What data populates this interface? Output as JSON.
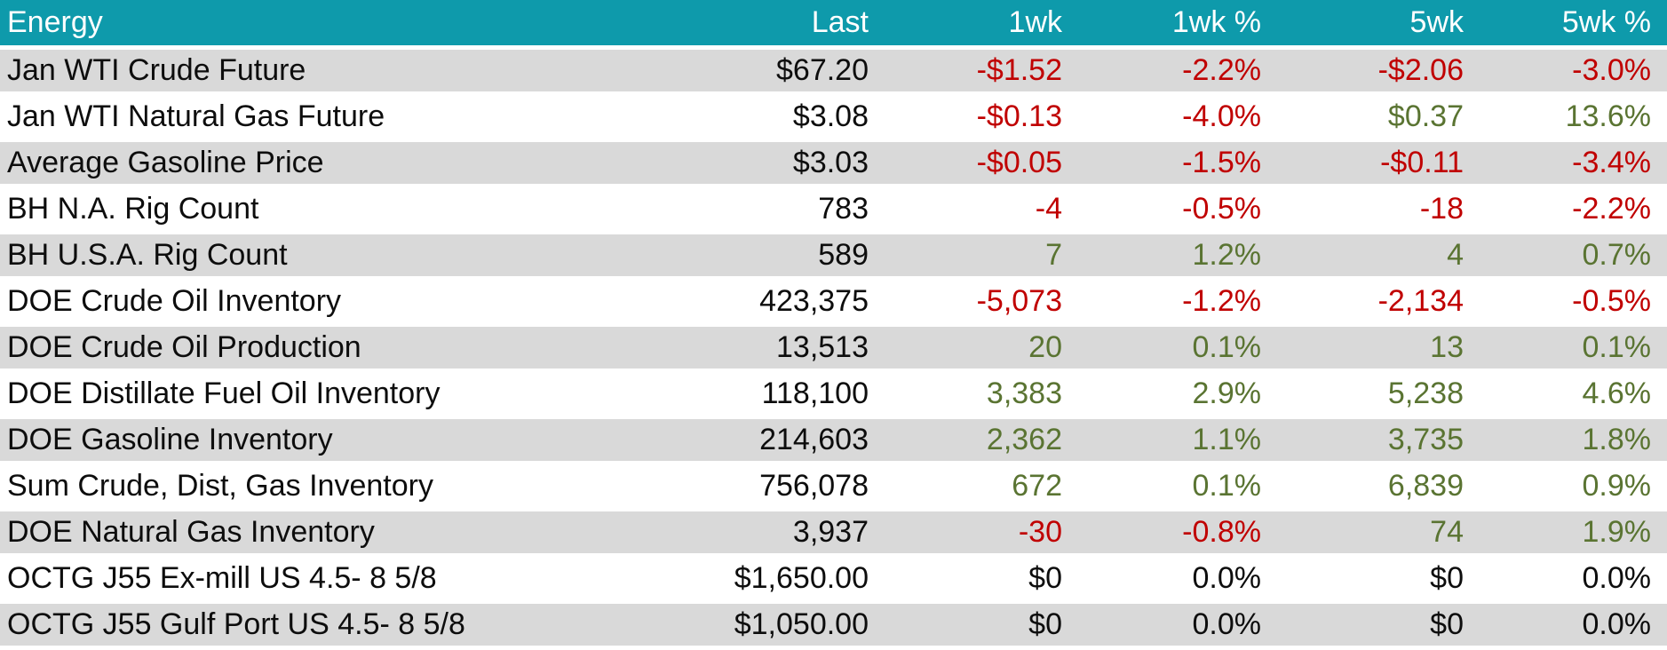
{
  "colors": {
    "header_bg": "#0E9AAB",
    "header_text": "#FFFFFF",
    "alt_row_bg": "#D9D9D9",
    "negative": "#C00000",
    "positive": "#5A7432",
    "neutral": "#0D0D0D"
  },
  "chart_data": {
    "type": "table",
    "title": "Energy",
    "columns": [
      "Energy",
      "Last",
      "1wk",
      "1wk %",
      "5wk",
      "5wk %"
    ],
    "rows": [
      {
        "label": "Jan WTI Crude Future",
        "values": [
          "$67.20",
          "-$1.52",
          "-2.2%",
          "-$2.06",
          "-3.0%"
        ],
        "trends": [
          "neutral",
          "negative",
          "negative",
          "negative",
          "negative"
        ]
      },
      {
        "label": "Jan WTI Natural Gas Future",
        "values": [
          "$3.08",
          "-$0.13",
          "-4.0%",
          "$0.37",
          "13.6%"
        ],
        "trends": [
          "neutral",
          "negative",
          "negative",
          "positive",
          "positive"
        ]
      },
      {
        "label": "Average Gasoline Price",
        "values": [
          "$3.03",
          "-$0.05",
          "-1.5%",
          "-$0.11",
          "-3.4%"
        ],
        "trends": [
          "neutral",
          "negative",
          "negative",
          "negative",
          "negative"
        ]
      },
      {
        "label": "BH N.A. Rig Count",
        "values": [
          "783",
          "-4",
          "-0.5%",
          "-18",
          "-2.2%"
        ],
        "trends": [
          "neutral",
          "negative",
          "negative",
          "negative",
          "negative"
        ]
      },
      {
        "label": "BH U.S.A. Rig Count",
        "values": [
          "589",
          "7",
          "1.2%",
          "4",
          "0.7%"
        ],
        "trends": [
          "neutral",
          "positive",
          "positive",
          "positive",
          "positive"
        ]
      },
      {
        "label": "DOE Crude Oil Inventory",
        "values": [
          "423,375",
          "-5,073",
          "-1.2%",
          "-2,134",
          "-0.5%"
        ],
        "trends": [
          "neutral",
          "negative",
          "negative",
          "negative",
          "negative"
        ]
      },
      {
        "label": "DOE Crude Oil Production",
        "values": [
          "13,513",
          "20",
          "0.1%",
          "13",
          "0.1%"
        ],
        "trends": [
          "neutral",
          "positive",
          "positive",
          "positive",
          "positive"
        ]
      },
      {
        "label": "DOE Distillate Fuel Oil Inventory",
        "values": [
          "118,100",
          "3,383",
          "2.9%",
          "5,238",
          "4.6%"
        ],
        "trends": [
          "neutral",
          "positive",
          "positive",
          "positive",
          "positive"
        ]
      },
      {
        "label": "DOE Gasoline Inventory",
        "values": [
          "214,603",
          "2,362",
          "1.1%",
          "3,735",
          "1.8%"
        ],
        "trends": [
          "neutral",
          "positive",
          "positive",
          "positive",
          "positive"
        ]
      },
      {
        "label": "Sum Crude, Dist, Gas Inventory",
        "values": [
          "756,078",
          "672",
          "0.1%",
          "6,839",
          "0.9%"
        ],
        "trends": [
          "neutral",
          "positive",
          "positive",
          "positive",
          "positive"
        ]
      },
      {
        "label": "DOE Natural Gas Inventory",
        "values": [
          "3,937",
          "-30",
          "-0.8%",
          "74",
          "1.9%"
        ],
        "trends": [
          "neutral",
          "negative",
          "negative",
          "positive",
          "positive"
        ]
      },
      {
        "label": "OCTG J55 Ex-mill US 4.5- 8 5/8",
        "values": [
          "$1,650.00",
          "$0",
          "0.0%",
          "$0",
          "0.0%"
        ],
        "trends": [
          "neutral",
          "neutral",
          "neutral",
          "neutral",
          "neutral"
        ]
      },
      {
        "label": "OCTG J55 Gulf Port US 4.5- 8 5/8",
        "values": [
          "$1,050.00",
          "$0",
          "0.0%",
          "$0",
          "0.0%"
        ],
        "trends": [
          "neutral",
          "neutral",
          "neutral",
          "neutral",
          "neutral"
        ]
      }
    ]
  }
}
